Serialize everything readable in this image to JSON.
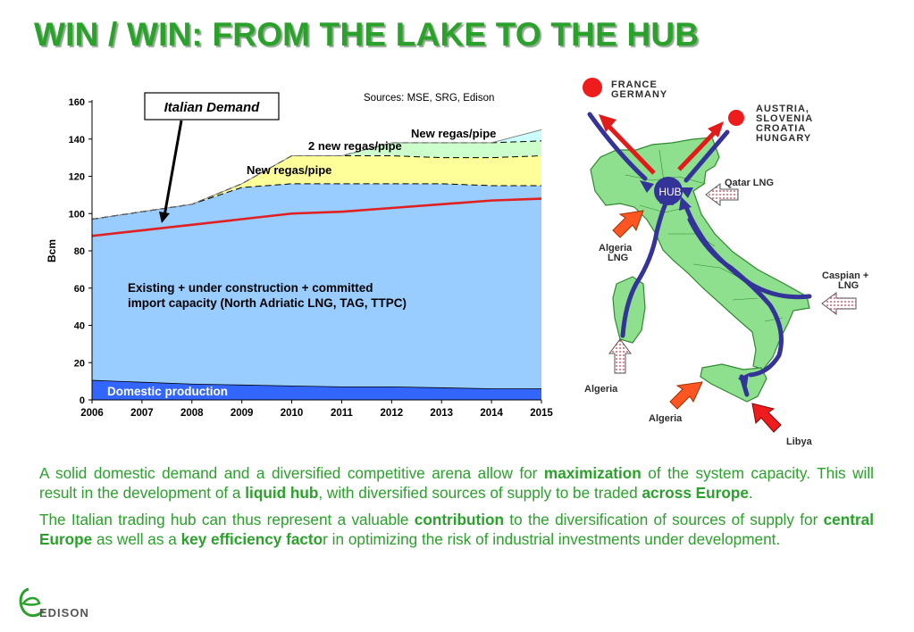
{
  "title": "WIN / WIN: FROM THE LAKE TO THE HUB",
  "chart_data": {
    "type": "area",
    "x": [
      2006,
      2007,
      2008,
      2009,
      2010,
      2011,
      2012,
      2013,
      2014,
      2015
    ],
    "ylabel": "Bcm",
    "ylim": [
      0,
      160
    ],
    "yticks": [
      0,
      20,
      40,
      60,
      80,
      100,
      120,
      140,
      160
    ],
    "source": "Sources: MSE, SRG, Edison",
    "series": [
      {
        "name": "Domestic production",
        "type": "area",
        "color": "#3366ff",
        "values": [
          10.5,
          9.5,
          8.5,
          8,
          7.5,
          7,
          7,
          6.5,
          6,
          6
        ]
      },
      {
        "name": "Existing + under construction + committed import capacity (North Adriatic LNG, TAG, TTPC)",
        "type": "area",
        "color": "#99ccff",
        "values": [
          97,
          101,
          105,
          114,
          116,
          116,
          116,
          116,
          115,
          115
        ]
      },
      {
        "name": "New regas/pipe",
        "type": "area",
        "color": "#ffff99",
        "values": [
          97,
          101,
          105,
          116,
          131,
          131,
          131,
          130,
          130,
          131
        ]
      },
      {
        "name": "2 new regas/pipe",
        "type": "area",
        "color": "#ccffcc",
        "values": [
          97,
          101,
          105,
          116,
          131,
          131,
          138,
          138,
          138,
          139
        ]
      },
      {
        "name": "New regas/pipe",
        "type": "area",
        "color": "#ccffff",
        "values": [
          97,
          101,
          105,
          116,
          131,
          131,
          138,
          138,
          138,
          145
        ]
      },
      {
        "name": "Italian Demand",
        "type": "line",
        "color": "#e02020",
        "values": [
          88,
          91,
          94,
          97,
          100,
          101,
          103,
          105,
          107,
          108
        ]
      }
    ],
    "annotations": {
      "demand": "Italian Demand",
      "regas1": "New regas/pipe",
      "regas2": "2 new regas/pipe",
      "regas3": "New regas/pipe",
      "existing_line1": "Existing + under construction + committed",
      "existing_line2": "import capacity (North Adriatic LNG, TAG, TTPC)",
      "domestic": "Domestic production"
    }
  },
  "map": {
    "france_germany": [
      "FRANCE",
      "GERMANY"
    ],
    "austria_group": [
      "AUSTRIA,",
      "SLOVENIA",
      "CROATIA",
      "HUNGARY"
    ],
    "qatar": "Qatar LNG",
    "algeria_lng": [
      "Algeria",
      "LNG"
    ],
    "caspian": [
      "Caspian +",
      "LNG"
    ],
    "algeria_sardinia": "Algeria",
    "algeria_sicily": "Algeria",
    "libya": "Libya",
    "hub": "HUB",
    "colors": {
      "land": "#8ee08e",
      "land_stroke": "#2f8a2f",
      "flow": "#333399",
      "export": "#ee1c1c"
    }
  },
  "body": {
    "p1": [
      {
        "t": "A solid domestic demand and a diversified competitive arena allow for ",
        "b": false
      },
      {
        "t": "maximization",
        "b": true
      },
      {
        "t": " of the system capacity. This will result in the development of a ",
        "b": false
      },
      {
        "t": "liquid hub",
        "b": true
      },
      {
        "t": ", with diversified sources of supply to be traded ",
        "b": false
      },
      {
        "t": "across Europe",
        "b": true
      },
      {
        "t": ".",
        "b": false
      }
    ],
    "p2": [
      {
        "t": "The Italian trading hub can thus represent a valuable ",
        "b": false
      },
      {
        "t": "contribution",
        "b": true
      },
      {
        "t": " to the diversification of sources of supply for ",
        "b": false
      },
      {
        "t": "central Europe",
        "b": true
      },
      {
        "t": " as well as a ",
        "b": false
      },
      {
        "t": "key efficiency facto",
        "b": true
      },
      {
        "t": "r in optimizing the risk of  industrial investments under development.",
        "b": false
      }
    ]
  },
  "logo": {
    "text": "EDISON",
    "color": "#2aa12a"
  }
}
